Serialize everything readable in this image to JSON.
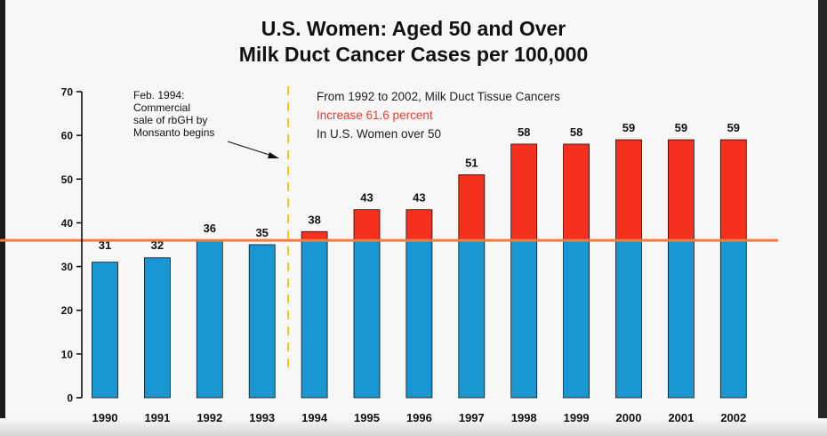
{
  "title_lines": [
    "U.S. Women: Aged 50 and Over",
    "Milk Duct Cancer Cases per 100,000"
  ],
  "chart_data": {
    "type": "bar",
    "categories": [
      "1990",
      "1991",
      "1992",
      "1993",
      "1994",
      "1995",
      "1996",
      "1997",
      "1998",
      "1999",
      "2000",
      "2001",
      "2002"
    ],
    "values": [
      31,
      32,
      36,
      35,
      38,
      43,
      43,
      51,
      58,
      58,
      59,
      59,
      59
    ],
    "value_labels": [
      "31",
      "32",
      "36",
      "35",
      "38",
      "43",
      "43",
      "51",
      "58",
      "58",
      "59",
      "59",
      "59"
    ],
    "baseline": 36,
    "ylim": [
      0,
      70
    ],
    "yticks": [
      0,
      10,
      20,
      30,
      40,
      50,
      60,
      70
    ],
    "event_marker": {
      "x_between": [
        "1993",
        "1994"
      ],
      "label_lines": [
        "Feb. 1994:",
        "Commercial",
        "sale of rbGH by",
        "Monsanto begins"
      ]
    },
    "annotation": {
      "line1": "From 1992 to 2002, Milk Duct Tissue Cancers",
      "line2": "Increase 61.6 percent",
      "line3": "In U.S. Women over 50"
    },
    "colors": {
      "base_bar": "#1897d2",
      "excess_bar": "#f5301c",
      "reference_line": "#f57c3c",
      "event_line": "#f2c21b",
      "highlight_text": "#f03a2a",
      "axis": "#000000"
    }
  }
}
